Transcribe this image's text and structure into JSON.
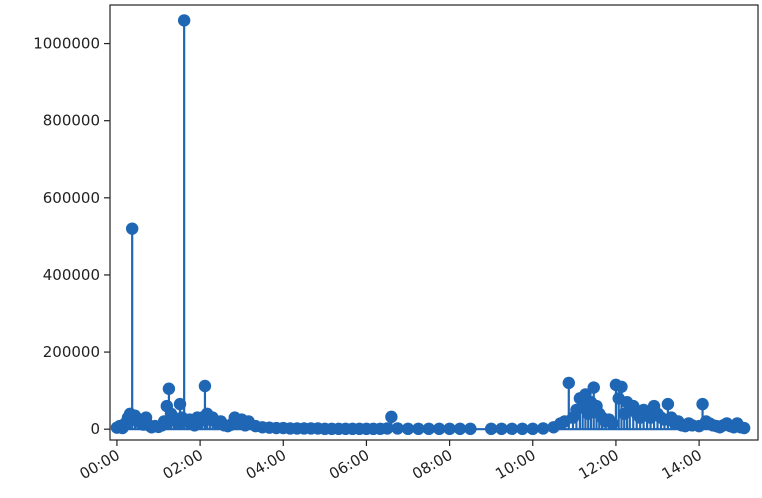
{
  "chart_data": {
    "type": "stem",
    "x_axis": {
      "type": "time",
      "range": [
        "-00:10",
        "15:25"
      ],
      "ticks": [
        "00:00",
        "02:00",
        "04:00",
        "06:00",
        "08:00",
        "10:00",
        "12:00",
        "14:00"
      ],
      "tick_rotation_deg": 30
    },
    "y_axis": {
      "range": [
        -28000,
        1100000
      ],
      "ticks": [
        "0",
        "200000",
        "400000",
        "600000",
        "800000",
        "1000000"
      ]
    },
    "grid": false,
    "legend": "none",
    "series": [
      {
        "color": "#1f66b4",
        "points": [
          [
            "00:00",
            4000
          ],
          [
            "00:04",
            8000
          ],
          [
            "00:08",
            3000
          ],
          [
            "00:12",
            15000
          ],
          [
            "00:16",
            30000
          ],
          [
            "00:19",
            40000
          ],
          [
            "00:22",
            520000
          ],
          [
            "00:26",
            35000
          ],
          [
            "00:30",
            20000
          ],
          [
            "00:34",
            25000
          ],
          [
            "00:38",
            12000
          ],
          [
            "00:42",
            30000
          ],
          [
            "00:46",
            10000
          ],
          [
            "00:50",
            5000
          ],
          [
            "00:55",
            8000
          ],
          [
            "01:00",
            6000
          ],
          [
            "01:05",
            10000
          ],
          [
            "01:08",
            20000
          ],
          [
            "01:12",
            60000
          ],
          [
            "01:15",
            105000
          ],
          [
            "01:18",
            40000
          ],
          [
            "01:22",
            30000
          ],
          [
            "01:25",
            20000
          ],
          [
            "01:28",
            15000
          ],
          [
            "01:31",
            65000
          ],
          [
            "01:34",
            30000
          ],
          [
            "01:37",
            1060000
          ],
          [
            "01:41",
            20000
          ],
          [
            "01:45",
            25000
          ],
          [
            "01:48",
            15000
          ],
          [
            "01:52",
            10000
          ],
          [
            "01:56",
            30000
          ],
          [
            "02:00",
            20000
          ],
          [
            "02:03",
            30000
          ],
          [
            "02:07",
            112000
          ],
          [
            "02:10",
            40000
          ],
          [
            "02:14",
            25000
          ],
          [
            "02:18",
            30000
          ],
          [
            "02:22",
            20000
          ],
          [
            "02:26",
            15000
          ],
          [
            "02:30",
            20000
          ],
          [
            "02:35",
            10000
          ],
          [
            "02:40",
            8000
          ],
          [
            "02:45",
            12000
          ],
          [
            "02:50",
            30000
          ],
          [
            "02:55",
            15000
          ],
          [
            "03:00",
            25000
          ],
          [
            "03:05",
            10000
          ],
          [
            "03:10",
            20000
          ],
          [
            "03:20",
            8000
          ],
          [
            "03:30",
            5000
          ],
          [
            "03:40",
            4000
          ],
          [
            "03:50",
            3000
          ],
          [
            "04:00",
            3000
          ],
          [
            "04:10",
            2000
          ],
          [
            "04:20",
            2000
          ],
          [
            "04:30",
            2000
          ],
          [
            "04:40",
            2000
          ],
          [
            "04:50",
            2000
          ],
          [
            "05:00",
            1000
          ],
          [
            "05:10",
            1000
          ],
          [
            "05:20",
            1000
          ],
          [
            "05:30",
            1000
          ],
          [
            "05:40",
            1000
          ],
          [
            "05:50",
            1000
          ],
          [
            "06:00",
            1000
          ],
          [
            "06:10",
            1000
          ],
          [
            "06:20",
            1000
          ],
          [
            "06:30",
            2000
          ],
          [
            "06:36",
            32000
          ],
          [
            "06:45",
            2000
          ],
          [
            "07:00",
            1000
          ],
          [
            "07:15",
            1000
          ],
          [
            "07:30",
            1000
          ],
          [
            "07:45",
            1000
          ],
          [
            "08:00",
            1000
          ],
          [
            "08:15",
            1000
          ],
          [
            "08:30",
            1000
          ],
          [
            "09:00",
            1000
          ],
          [
            "09:15",
            1000
          ],
          [
            "09:30",
            1000
          ],
          [
            "09:45",
            1000
          ],
          [
            "10:00",
            1000
          ],
          [
            "10:15",
            2000
          ],
          [
            "10:30",
            5000
          ],
          [
            "10:40",
            15000
          ],
          [
            "10:46",
            20000
          ],
          [
            "10:52",
            120000
          ],
          [
            "10:58",
            30000
          ],
          [
            "11:03",
            50000
          ],
          [
            "11:08",
            80000
          ],
          [
            "11:12",
            60000
          ],
          [
            "11:16",
            90000
          ],
          [
            "11:20",
            40000
          ],
          [
            "11:24",
            70000
          ],
          [
            "11:28",
            108000
          ],
          [
            "11:32",
            60000
          ],
          [
            "11:36",
            40000
          ],
          [
            "11:40",
            30000
          ],
          [
            "11:45",
            20000
          ],
          [
            "11:50",
            25000
          ],
          [
            "11:55",
            15000
          ],
          [
            "12:00",
            115000
          ],
          [
            "12:04",
            80000
          ],
          [
            "12:08",
            110000
          ],
          [
            "12:12",
            40000
          ],
          [
            "12:16",
            70000
          ],
          [
            "12:20",
            50000
          ],
          [
            "12:25",
            60000
          ],
          [
            "12:30",
            40000
          ],
          [
            "12:35",
            30000
          ],
          [
            "12:40",
            50000
          ],
          [
            "12:45",
            35000
          ],
          [
            "12:50",
            30000
          ],
          [
            "12:55",
            60000
          ],
          [
            "13:00",
            40000
          ],
          [
            "13:05",
            30000
          ],
          [
            "13:10",
            25000
          ],
          [
            "13:15",
            65000
          ],
          [
            "13:20",
            30000
          ],
          [
            "13:25",
            15000
          ],
          [
            "13:30",
            20000
          ],
          [
            "13:35",
            10000
          ],
          [
            "13:40",
            8000
          ],
          [
            "13:45",
            15000
          ],
          [
            "13:50",
            10000
          ],
          [
            "14:00",
            8000
          ],
          [
            "14:05",
            65000
          ],
          [
            "14:10",
            20000
          ],
          [
            "14:15",
            15000
          ],
          [
            "14:20",
            10000
          ],
          [
            "14:25",
            8000
          ],
          [
            "14:30",
            5000
          ],
          [
            "14:35",
            10000
          ],
          [
            "14:40",
            15000
          ],
          [
            "14:45",
            8000
          ],
          [
            "14:50",
            5000
          ],
          [
            "14:55",
            15000
          ],
          [
            "15:00",
            5000
          ],
          [
            "15:05",
            3000
          ]
        ]
      }
    ]
  }
}
